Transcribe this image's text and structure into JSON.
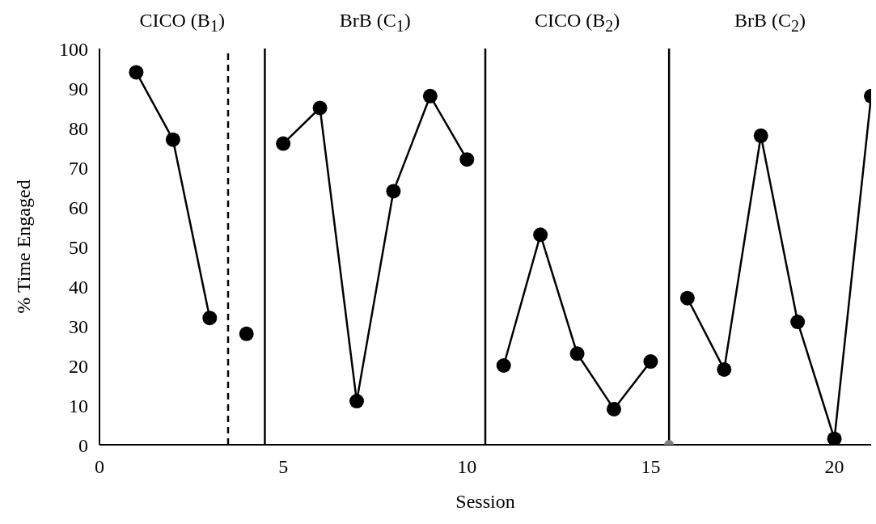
{
  "chart_data": {
    "type": "line",
    "xlabel": "Session",
    "ylabel": "% Time Engaged",
    "xlim": [
      0,
      21
    ],
    "xticks": [
      0,
      5,
      10,
      15,
      20
    ],
    "ylim": [
      0,
      100
    ],
    "yticks": [
      0,
      10,
      20,
      30,
      40,
      50,
      60,
      70,
      80,
      90,
      100
    ],
    "grid": false,
    "marker": "circle",
    "line_style": "solid",
    "series": [
      {
        "color": "#000000",
        "x": [
          1,
          2,
          3
        ],
        "values": [
          94,
          77,
          32
        ]
      },
      {
        "color": "#000000",
        "x": [
          4
        ],
        "values": [
          28
        ]
      },
      {
        "color": "#000000",
        "x": [
          5,
          6,
          7,
          8,
          9,
          10
        ],
        "values": [
          76,
          85,
          11,
          64,
          88,
          72
        ]
      },
      {
        "color": "#000000",
        "x": [
          11,
          12,
          13,
          14,
          15
        ],
        "values": [
          20,
          53,
          23,
          9,
          21
        ]
      },
      {
        "color": "#000000",
        "x": [
          16,
          17,
          18,
          19,
          20,
          21
        ],
        "values": [
          37,
          19,
          78,
          31,
          1.5,
          88
        ]
      },
      {
        "type": "scatter",
        "color": "#808080",
        "x": [
          15.5
        ],
        "values": [
          0
        ]
      }
    ],
    "ref_lines": [
      {
        "axis": "x",
        "value": 3.5,
        "line_style": "dashed",
        "color": "#000000"
      },
      {
        "axis": "x",
        "value": 4.5,
        "line_style": "solid",
        "color": "#000000"
      },
      {
        "axis": "x",
        "value": 10.5,
        "line_style": "solid",
        "color": "#000000"
      },
      {
        "axis": "x",
        "value": 15.5,
        "line_style": "solid",
        "color": "#000000"
      }
    ],
    "annotations": [
      "CICO (B$_{1}$)",
      "BrB (C$_{1}$)",
      "CICO (B$_{2}$)",
      "BrB (C$_{2}$)"
    ]
  }
}
